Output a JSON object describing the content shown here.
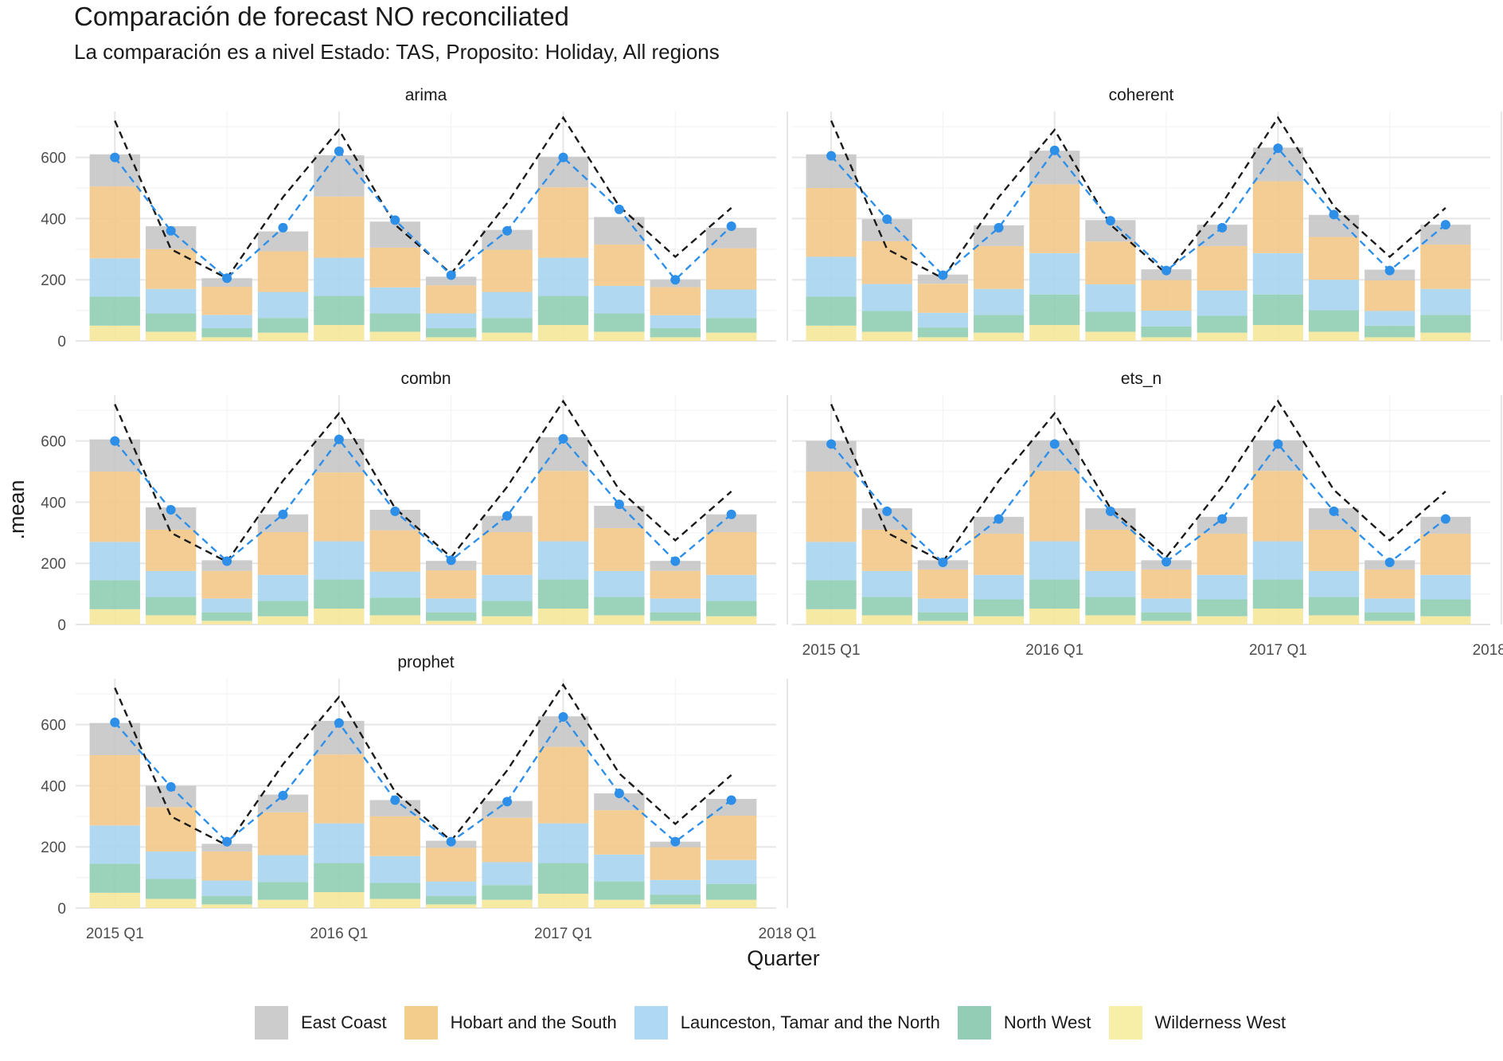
{
  "title": "Comparación de forecast NO reconciliated",
  "subtitle": "La comparación es a nivel Estado: TAS, Proposito: Holiday, All regions",
  "chart_data": {
    "type": "bar",
    "stacked": true,
    "xlabel": "Quarter",
    "ylabel": ".mean",
    "ylim": [
      0,
      750
    ],
    "yticks": [
      0,
      200,
      400,
      600
    ],
    "xtick_labels": [
      "2015 Q1",
      "2016 Q1",
      "2017 Q1",
      "2018 Q1"
    ],
    "categories": [
      "2015 Q1",
      "2015 Q2",
      "2015 Q3",
      "2015 Q4",
      "2016 Q1",
      "2016 Q2",
      "2016 Q3",
      "2016 Q4",
      "2017 Q1",
      "2017 Q2",
      "2017 Q3",
      "2017 Q4"
    ],
    "legend_position": "bottom",
    "stack_colors": [
      "#f5e79a",
      "#8fcdb2",
      "#a9d4f0",
      "#f2c887",
      "#c6c6c6"
    ],
    "legend": [
      {
        "name": "East Coast",
        "color": "#cccccc"
      },
      {
        "name": "Hobart and the South",
        "color": "#f3cd8c"
      },
      {
        "name": "Launceston, Tamar and the North",
        "color": "#aed8f3"
      },
      {
        "name": "North West",
        "color": "#94cdb5"
      },
      {
        "name": "Wilderness West",
        "color": "#f7eea8"
      }
    ],
    "reference_line": {
      "style": "dashed",
      "color": "#1a1a1a",
      "values": [
        720,
        300,
        205,
        470,
        690,
        380,
        220,
        450,
        730,
        440,
        275,
        435
      ]
    },
    "forecast_color": "#2e8fe8",
    "panels": [
      {
        "name": "arima",
        "forecast": [
          600,
          360,
          205,
          370,
          620,
          395,
          215,
          360,
          600,
          430,
          200,
          375
        ],
        "stacks": [
          [
            50,
            30,
            12,
            27,
            52,
            30,
            12,
            27,
            52,
            30,
            12,
            27
          ],
          [
            95,
            60,
            30,
            48,
            95,
            60,
            30,
            48,
            95,
            60,
            30,
            48
          ],
          [
            125,
            80,
            43,
            85,
            125,
            85,
            48,
            85,
            125,
            90,
            42,
            93
          ],
          [
            235,
            130,
            92,
            133,
            200,
            130,
            92,
            138,
            230,
            135,
            92,
            135
          ],
          [
            105,
            75,
            28,
            65,
            135,
            85,
            28,
            65,
            100,
            90,
            24,
            67
          ]
        ]
      },
      {
        "name": "coherent",
        "forecast": [
          605,
          398,
          215,
          370,
          623,
          393,
          230,
          370,
          630,
          413,
          230,
          380
        ],
        "stacks": [
          [
            50,
            30,
            12,
            27,
            52,
            30,
            12,
            27,
            52,
            30,
            12,
            27
          ],
          [
            95,
            68,
            32,
            58,
            100,
            65,
            35,
            55,
            100,
            70,
            38,
            58
          ],
          [
            130,
            88,
            48,
            85,
            135,
            90,
            52,
            83,
            135,
            100,
            48,
            85
          ],
          [
            225,
            140,
            95,
            140,
            225,
            140,
            100,
            145,
            235,
            140,
            100,
            145
          ],
          [
            110,
            72,
            30,
            68,
            110,
            70,
            35,
            70,
            110,
            72,
            35,
            65
          ]
        ]
      },
      {
        "name": "combn",
        "forecast": [
          600,
          375,
          207,
          360,
          605,
          370,
          210,
          355,
          607,
          393,
          207,
          360
        ],
        "stacks": [
          [
            50,
            30,
            12,
            27,
            52,
            30,
            12,
            27,
            52,
            30,
            12,
            27
          ],
          [
            95,
            60,
            28,
            50,
            95,
            58,
            28,
            50,
            95,
            60,
            28,
            50
          ],
          [
            125,
            85,
            45,
            85,
            125,
            85,
            45,
            85,
            125,
            85,
            45,
            85
          ],
          [
            230,
            135,
            90,
            140,
            225,
            135,
            92,
            140,
            230,
            140,
            90,
            140
          ],
          [
            105,
            73,
            35,
            58,
            110,
            67,
            31,
            53,
            110,
            73,
            33,
            58
          ]
        ]
      },
      {
        "name": "ets_n",
        "forecast": [
          590,
          370,
          203,
          345,
          590,
          370,
          205,
          345,
          590,
          370,
          203,
          345
        ],
        "stacks": [
          [
            50,
            30,
            12,
            27,
            52,
            30,
            12,
            27,
            52,
            30,
            12,
            27
          ],
          [
            95,
            60,
            28,
            55,
            95,
            60,
            28,
            55,
            95,
            60,
            28,
            55
          ],
          [
            125,
            85,
            45,
            80,
            125,
            85,
            45,
            80,
            125,
            85,
            45,
            80
          ],
          [
            230,
            135,
            95,
            135,
            230,
            135,
            95,
            135,
            230,
            135,
            95,
            135
          ],
          [
            100,
            70,
            30,
            55,
            100,
            70,
            30,
            55,
            100,
            70,
            30,
            55
          ]
        ]
      },
      {
        "name": "prophet",
        "forecast": [
          607,
          396,
          217,
          368,
          605,
          353,
          217,
          348,
          625,
          375,
          217,
          353
        ],
        "stacks": [
          [
            50,
            30,
            12,
            27,
            52,
            30,
            12,
            27,
            47,
            27,
            12,
            27
          ],
          [
            95,
            65,
            28,
            58,
            95,
            52,
            28,
            48,
            100,
            60,
            32,
            52
          ],
          [
            125,
            90,
            50,
            88,
            130,
            88,
            47,
            75,
            130,
            88,
            48,
            78
          ],
          [
            230,
            145,
            95,
            140,
            225,
            130,
            110,
            145,
            250,
            145,
            107,
            145
          ],
          [
            105,
            70,
            25,
            58,
            110,
            53,
            23,
            55,
            100,
            55,
            18,
            55
          ]
        ]
      }
    ]
  }
}
